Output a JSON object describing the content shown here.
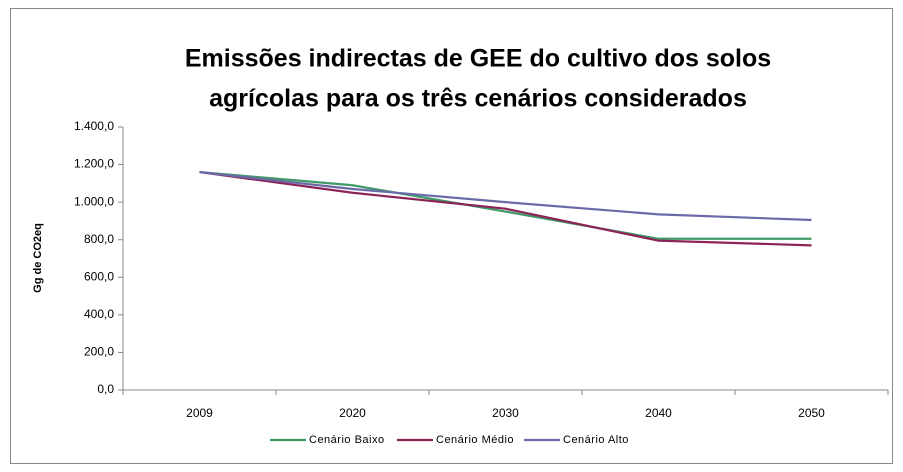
{
  "chart_data": {
    "type": "line",
    "title": [
      "Emissões indirectas de GEE do cultivo dos solos",
      "agrícolas para os três cenários considerados"
    ],
    "ylabel": "Gg de CO2eq",
    "categories": [
      "2009",
      "2020",
      "2030",
      "2040",
      "2050"
    ],
    "series": [
      {
        "name": "Cenário Baixo",
        "color": "#3f9a68",
        "values": [
          1160,
          1090,
          950,
          805,
          805
        ]
      },
      {
        "name": "Cenário Médio",
        "color": "#8b2456",
        "values": [
          1160,
          1050,
          965,
          795,
          770
        ]
      },
      {
        "name": "Cenário Alto",
        "color": "#6a6aa8",
        "values": [
          1160,
          1070,
          1000,
          935,
          905
        ]
      }
    ],
    "ylim": [
      0,
      1400
    ],
    "yticks": [
      {
        "value": 0,
        "label": "0,0"
      },
      {
        "value": 200,
        "label": "200,0"
      },
      {
        "value": 400,
        "label": "400,0"
      },
      {
        "value": 600,
        "label": "600,0"
      },
      {
        "value": 800,
        "label": "800,0"
      },
      {
        "value": 1000,
        "label": "1.000,0"
      },
      {
        "value": 1200,
        "label": "1.200,0"
      },
      {
        "value": 1400,
        "label": "1.400,0"
      }
    ],
    "grid": false,
    "legend": "bottom"
  }
}
